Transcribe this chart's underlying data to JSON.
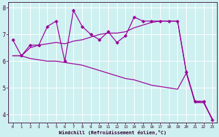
{
  "xlabel": "Windchill (Refroidissement éolien,°C)",
  "line_color": "#990099",
  "bg_color": "#cff0f0",
  "grid_color": "#ffffff",
  "xlim": [
    -0.5,
    23.5
  ],
  "ylim": [
    3.7,
    8.2
  ],
  "yticks": [
    4,
    5,
    6,
    7,
    8
  ],
  "xticks": [
    0,
    1,
    2,
    3,
    4,
    5,
    6,
    7,
    8,
    9,
    10,
    11,
    12,
    13,
    14,
    15,
    16,
    17,
    18,
    19,
    20,
    21,
    22,
    23
  ],
  "series1": [
    6.8,
    6.2,
    6.6,
    6.6,
    7.3,
    7.5,
    6.0,
    7.9,
    7.3,
    7.0,
    6.8,
    7.1,
    6.7,
    6.95,
    7.65,
    7.5,
    7.5,
    7.5,
    7.5,
    7.5,
    5.6,
    4.5,
    4.5,
    3.8
  ],
  "series2": [
    6.2,
    6.2,
    6.5,
    6.6,
    6.65,
    6.7,
    6.65,
    6.75,
    6.8,
    6.9,
    7.0,
    7.05,
    7.05,
    7.1,
    7.25,
    7.35,
    7.45,
    7.5,
    7.5,
    7.5,
    5.6,
    4.45,
    4.45,
    3.85
  ],
  "series3": [
    6.2,
    6.2,
    6.1,
    6.05,
    6.0,
    6.0,
    5.95,
    5.9,
    5.85,
    5.75,
    5.65,
    5.55,
    5.45,
    5.35,
    5.3,
    5.2,
    5.1,
    5.05,
    5.0,
    4.95,
    5.55,
    4.5,
    4.45,
    3.82
  ],
  "markersize": 2.5,
  "linewidth": 0.9
}
